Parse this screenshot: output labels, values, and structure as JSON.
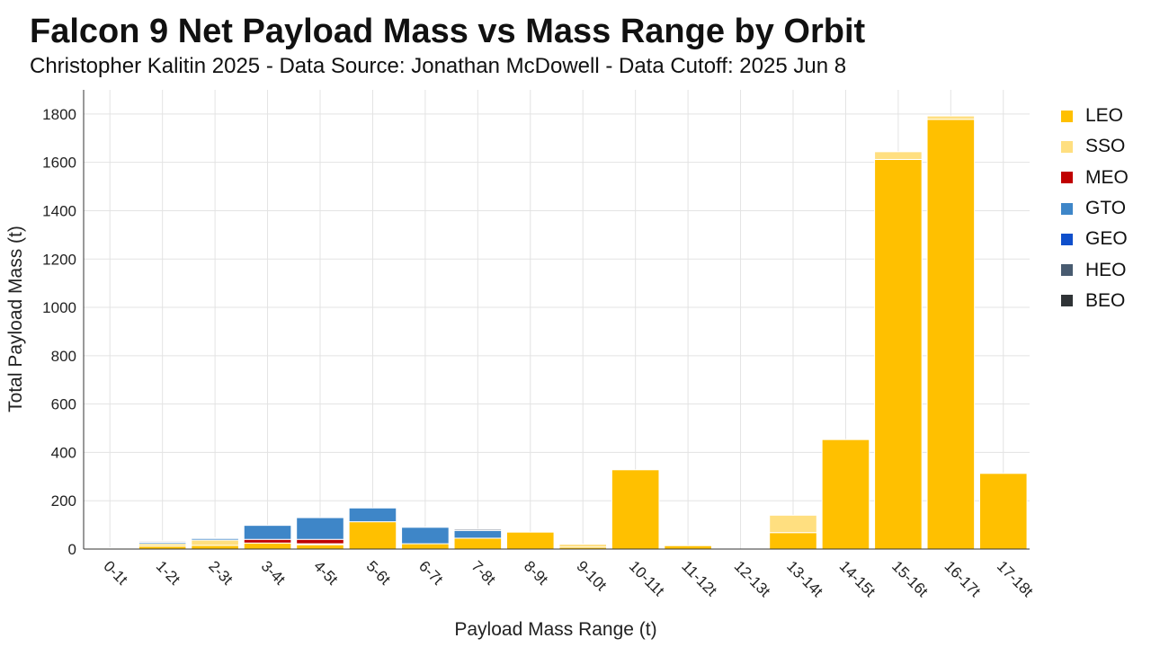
{
  "title": "Falcon 9 Net Payload Mass vs Mass Range by Orbit",
  "subtitle": "Christopher Kalitin 2025 - Data Source: Jonathan McDowell - Data Cutoff: 2025 Jun 8",
  "chart_data": {
    "type": "bar",
    "stacked": true,
    "xlabel": "Payload Mass Range (t)",
    "ylabel": "Total Payload Mass (t)",
    "ylim": [
      0,
      1900
    ],
    "yticks": [
      0,
      200,
      400,
      600,
      800,
      1000,
      1200,
      1400,
      1600,
      1800
    ],
    "grid": true,
    "legend_position": "right",
    "categories": [
      "0-1t",
      "1-2t",
      "2-3t",
      "3-4t",
      "4-5t",
      "5-6t",
      "6-7t",
      "7-8t",
      "8-9t",
      "9-10t",
      "10-11t",
      "11-12t",
      "12-13t",
      "13-14t",
      "14-15t",
      "15-16t",
      "16-17t",
      "17-18t"
    ],
    "series": [
      {
        "name": "LEO",
        "color": "#FFC000",
        "values": [
          4,
          12,
          15,
          25,
          18,
          113,
          22,
          45,
          70,
          8,
          328,
          14,
          0,
          68,
          453,
          1612,
          1778,
          313
        ]
      },
      {
        "name": "SSO",
        "color": "#FFDF80",
        "values": [
          1,
          10,
          22,
          0,
          4,
          0,
          0,
          0,
          0,
          12,
          0,
          0,
          0,
          72,
          0,
          32,
          14,
          0
        ]
      },
      {
        "name": "MEO",
        "color": "#C00000",
        "values": [
          0,
          0,
          0,
          15,
          18,
          0,
          0,
          0,
          0,
          0,
          0,
          0,
          0,
          0,
          0,
          0,
          0,
          0
        ]
      },
      {
        "name": "GTO",
        "color": "#3E86C8",
        "values": [
          0,
          6,
          7,
          58,
          90,
          57,
          68,
          32,
          0,
          0,
          0,
          0,
          0,
          0,
          0,
          0,
          0,
          0
        ]
      },
      {
        "name": "GEO",
        "color": "#0F4FCB",
        "values": [
          0,
          0,
          0,
          0,
          0,
          0,
          0,
          0,
          0,
          0,
          0,
          0,
          0,
          0,
          0,
          0,
          0,
          0
        ]
      },
      {
        "name": "HEO",
        "color": "#485B70",
        "values": [
          0,
          2,
          0,
          0,
          0,
          0,
          0,
          5,
          0,
          0,
          0,
          0,
          0,
          0,
          0,
          0,
          0,
          0
        ]
      },
      {
        "name": "BEO",
        "color": "#2F3336",
        "values": [
          0,
          4,
          3,
          0,
          0,
          0,
          0,
          0,
          0,
          0,
          0,
          0,
          0,
          0,
          0,
          0,
          0,
          0
        ]
      }
    ]
  }
}
